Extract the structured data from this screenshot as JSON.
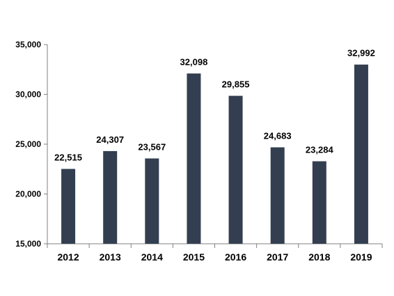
{
  "chart_data": {
    "type": "bar",
    "categories": [
      "2012",
      "2013",
      "2014",
      "2015",
      "2016",
      "2017",
      "2018",
      "2019"
    ],
    "values": [
      22515,
      24307,
      23567,
      32098,
      29855,
      24683,
      23284,
      32992
    ],
    "data_labels": [
      "22,515",
      "24,307",
      "23,567",
      "32,098",
      "29,855",
      "24,683",
      "23,284",
      "32,992"
    ],
    "ylim": [
      15000,
      35000
    ],
    "yticks": [
      15000,
      20000,
      25000,
      30000,
      35000
    ],
    "ytick_labels": [
      "15,000",
      "20,000",
      "25,000",
      "30,000",
      "35,000"
    ],
    "grid": false,
    "legend": "none",
    "title": "",
    "xlabel": "",
    "ylabel": "",
    "bar_color": "#333f50"
  }
}
